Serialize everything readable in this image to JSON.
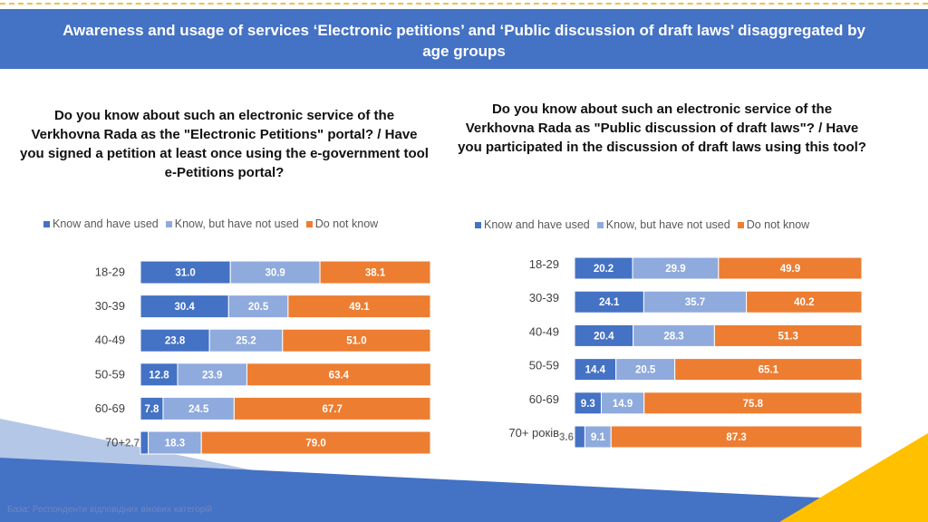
{
  "header": {
    "title": "Awareness and usage of services ‘Electronic petitions’ and ‘Public discussion of draft laws’ disaggregated by age groups"
  },
  "colors": {
    "header_bg": "#4472c4",
    "know_used": "#4472c4",
    "know_not_used": "#8faadc",
    "not_know": "#ed7d31",
    "accent_yellow": "#ffc000"
  },
  "footer": {
    "note": "База: Респонденти відповідних вікових категорій"
  },
  "chart_data": [
    {
      "type": "bar",
      "orientation": "horizontal",
      "stacked": true,
      "title": "Do you know about such an electronic service of the Verkhovna Rada as the \"Electronic Petitions\" portal? / Have you signed a petition at least once using the e-government tool e-Petitions portal?",
      "categories": [
        "18-29",
        "30-39",
        "40-49",
        "50-59",
        "60-69",
        "70+"
      ],
      "series": [
        {
          "name": "Know and have used",
          "values": [
            31.0,
            30.4,
            23.8,
            12.8,
            7.8,
            2.7
          ]
        },
        {
          "name": "Know, but have not used",
          "values": [
            30.9,
            20.5,
            25.2,
            23.9,
            24.5,
            18.3
          ]
        },
        {
          "name": "Do not know",
          "values": [
            38.1,
            49.1,
            51.0,
            63.4,
            67.7,
            79.0
          ]
        }
      ],
      "xlim": [
        0,
        100
      ],
      "legend": "top"
    },
    {
      "type": "bar",
      "orientation": "horizontal",
      "stacked": true,
      "title": "Do you know about such an electronic service of the Verkhovna Rada as \"Public discussion of draft laws\"? / Have you participated in the discussion of draft laws using this tool?",
      "categories": [
        "18-29",
        "30-39",
        "40-49",
        "50-59",
        "60-69",
        "70+ років"
      ],
      "series": [
        {
          "name": "Know and have used",
          "values": [
            20.2,
            24.1,
            20.4,
            14.4,
            9.3,
            3.6
          ]
        },
        {
          "name": "Know, but have not used",
          "values": [
            29.9,
            35.7,
            28.3,
            20.5,
            14.9,
            9.1
          ]
        },
        {
          "name": "Do not know",
          "values": [
            49.9,
            40.2,
            51.3,
            65.1,
            75.8,
            87.3
          ]
        }
      ],
      "xlim": [
        0,
        100
      ],
      "legend": "top"
    }
  ]
}
